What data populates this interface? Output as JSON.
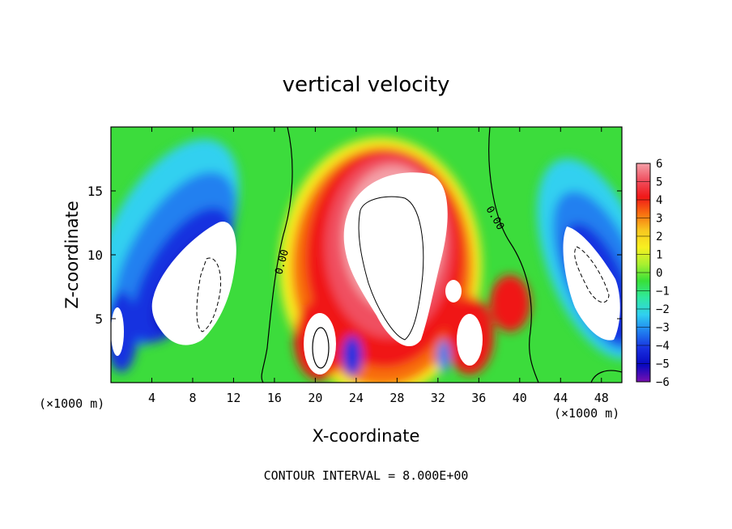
{
  "chart_data": {
    "type": "heatmap",
    "title": "vertical velocity",
    "xlabel": "X-coordinate",
    "ylabel": "Z-coordinate",
    "x_units_left": "(×1000 m)",
    "x_units_right": "(×1000 m)",
    "xlim": [
      0,
      50
    ],
    "ylim": [
      0,
      20
    ],
    "x_ticks": [
      4,
      8,
      12,
      16,
      20,
      24,
      28,
      32,
      36,
      40,
      44,
      48
    ],
    "y_ticks": [
      5,
      10,
      15
    ],
    "colorbar": {
      "levels": [
        6,
        5,
        4,
        3,
        2,
        1,
        0,
        -1,
        -2,
        -3,
        -4,
        -5,
        -6
      ],
      "labels": [
        "6",
        "5",
        "4",
        "3",
        "2",
        "1",
        "0",
        "−1",
        "−2",
        "−3",
        "−4",
        "−5",
        "−6"
      ],
      "colors": [
        "#f4a0a8",
        "#f05060",
        "#f01818",
        "#f87010",
        "#f8c820",
        "#f8f020",
        "#a8f030",
        "#38e038",
        "#30e8a0",
        "#30d0f0",
        "#2080f0",
        "#1830e0",
        "#0808c0",
        "#7810b0"
      ]
    },
    "contour_label": "0.00",
    "contour_interval_text": "CONTOUR INTERVAL = 8.000E+00",
    "features": [
      {
        "name": "central updraft core",
        "sign": "positive",
        "x": 28,
        "z": 10
      },
      {
        "name": "left downdraft core",
        "sign": "negative",
        "x": 9,
        "z": 8
      },
      {
        "name": "right downdraft core",
        "sign": "negative",
        "x": 47,
        "z": 8
      },
      {
        "name": "lower updraft cell",
        "sign": "positive",
        "x": 20,
        "z": 3
      },
      {
        "name": "lower updraft cell",
        "sign": "positive",
        "x": 35,
        "z": 3
      }
    ]
  }
}
